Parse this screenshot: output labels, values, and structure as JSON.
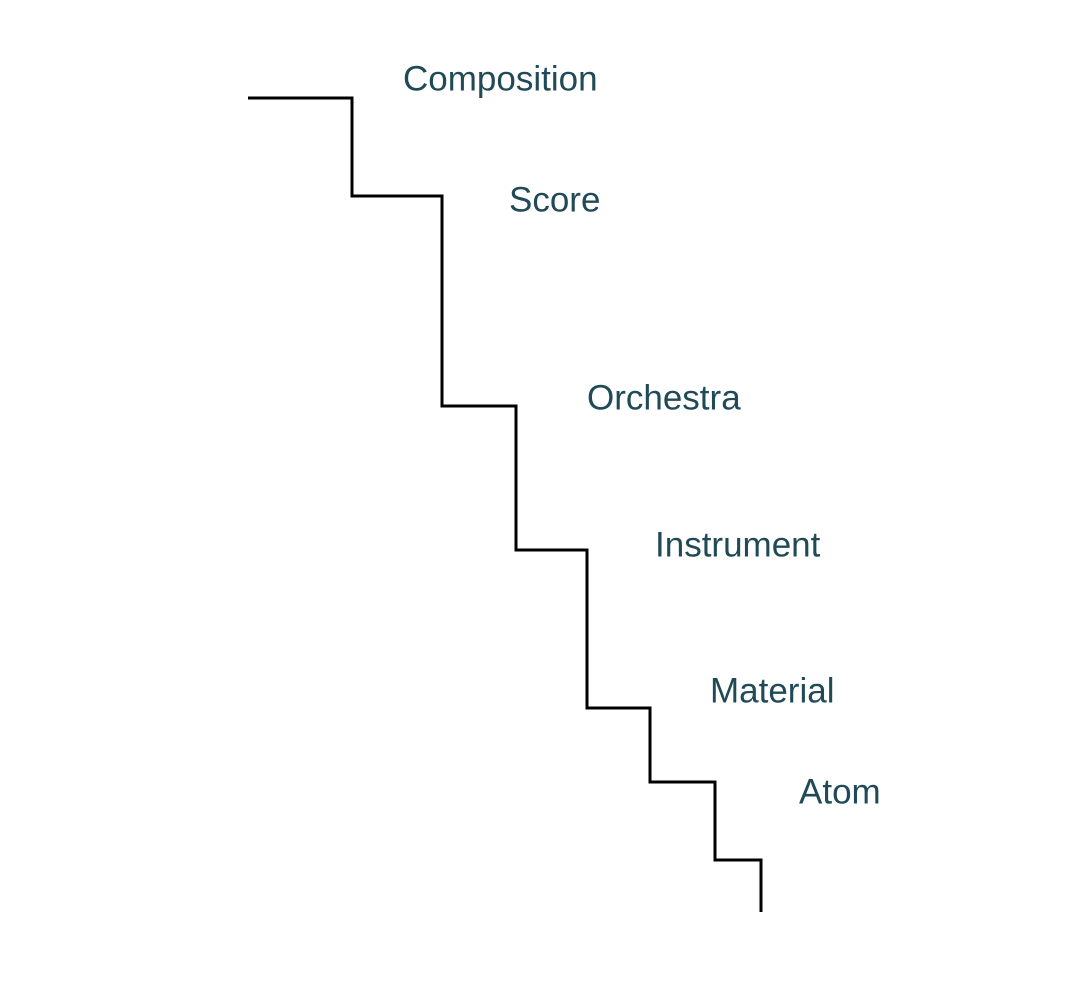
{
  "diagram": {
    "line_color": "#000000",
    "label_color": "#1f4a56",
    "steps": [
      {
        "label": "Composition"
      },
      {
        "label": "Score"
      },
      {
        "label": "Orchestra"
      },
      {
        "label": "Instrument"
      },
      {
        "label": "Material"
      },
      {
        "label": "Atom"
      }
    ]
  }
}
